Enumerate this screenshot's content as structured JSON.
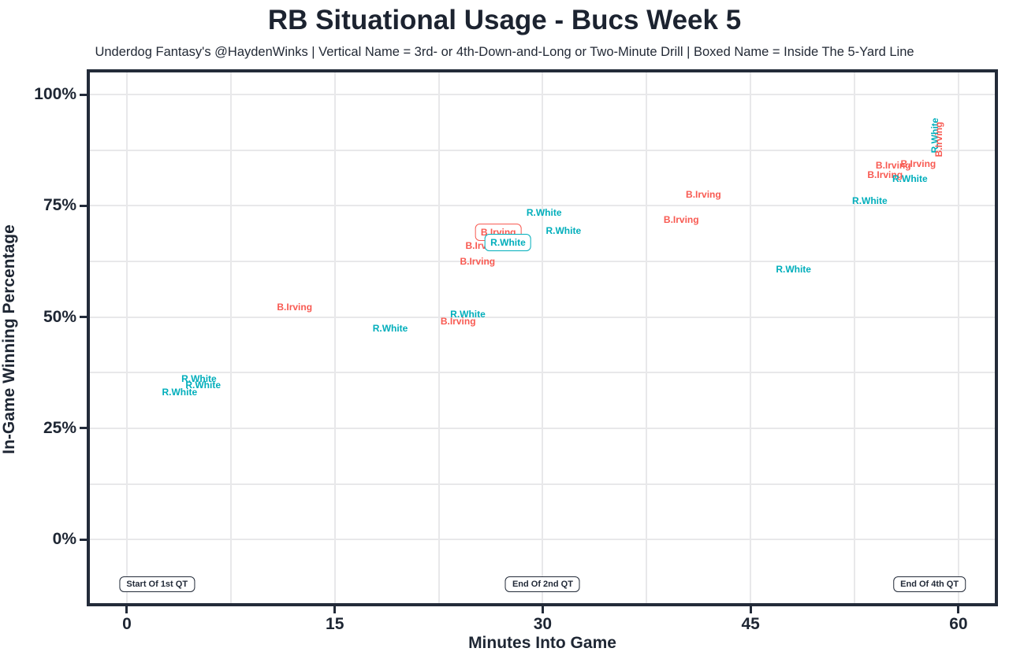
{
  "header": {
    "title": "RB Situational Usage - Bucs Week 5",
    "subtitle": "Underdog Fantasy's @HaydenWinks | Vertical Name = 3rd- or 4th-Down-and-Long or Two-Minute Drill | Boxed Name = Inside The 5-Yard Line"
  },
  "colors": {
    "white_teal": "#00AEBB",
    "irving_red": "#F85A52",
    "axis_text": "#1E2633",
    "panel_border": "#232B39",
    "grid": "#E8E8EA",
    "background": "#FFFFFF"
  },
  "chart_data": {
    "type": "scatter",
    "title": "RB Situational Usage - Bucs Week 5",
    "xlabel": "Minutes Into Game",
    "ylabel": "In-Game Winning Percentage",
    "xlim": [
      -2.9,
      62.85
    ],
    "ylim": [
      -15.0,
      105.7
    ],
    "grid": true,
    "x_gridlines": [
      0,
      7.5,
      15,
      22.5,
      30,
      37.5,
      45,
      52.5,
      60
    ],
    "y_gridlines": [
      0,
      12.5,
      25,
      37.5,
      50,
      62.5,
      75,
      87.5,
      100
    ],
    "x_ticks": [
      {
        "value": 0,
        "label": "0"
      },
      {
        "value": 15,
        "label": "15"
      },
      {
        "value": 30,
        "label": "30"
      },
      {
        "value": 45,
        "label": "45"
      },
      {
        "value": 60,
        "label": "60"
      }
    ],
    "y_ticks": [
      {
        "value": 0,
        "label": "0%"
      },
      {
        "value": 25,
        "label": "25%"
      },
      {
        "value": 50,
        "label": "50%"
      },
      {
        "value": 75,
        "label": "75%"
      },
      {
        "value": 100,
        "label": "100%"
      }
    ],
    "series": [
      {
        "name": "B.Irving",
        "color": "#F85A52",
        "points": [
          {
            "x": 12.1,
            "y": 52.2,
            "vertical": false,
            "boxed": false,
            "z": 2
          },
          {
            "x": 23.9,
            "y": 49.0,
            "vertical": false,
            "boxed": false,
            "z": 2
          },
          {
            "x": 25.7,
            "y": 66.0,
            "vertical": false,
            "boxed": false,
            "z": 2
          },
          {
            "x": 25.3,
            "y": 62.5,
            "vertical": false,
            "boxed": false,
            "z": 2
          },
          {
            "x": 26.8,
            "y": 69.0,
            "vertical": false,
            "boxed": true,
            "z": 4
          },
          {
            "x": 40.0,
            "y": 71.9,
            "vertical": false,
            "boxed": false,
            "z": 2
          },
          {
            "x": 41.6,
            "y": 77.5,
            "vertical": false,
            "boxed": false,
            "z": 2
          },
          {
            "x": 54.7,
            "y": 81.9,
            "vertical": false,
            "boxed": false,
            "z": 2
          },
          {
            "x": 55.3,
            "y": 84.1,
            "vertical": false,
            "boxed": false,
            "z": 2
          },
          {
            "x": 57.1,
            "y": 84.4,
            "vertical": false,
            "boxed": false,
            "z": 2
          },
          {
            "x": 58.6,
            "y": 89.9,
            "vertical": true,
            "boxed": false,
            "z": 6
          }
        ]
      },
      {
        "name": "R.White",
        "color": "#00AEBB",
        "points": [
          {
            "x": 3.8,
            "y": 33.1,
            "vertical": false,
            "boxed": false,
            "z": 3
          },
          {
            "x": 5.2,
            "y": 36.1,
            "vertical": false,
            "boxed": false,
            "z": 3
          },
          {
            "x": 5.5,
            "y": 34.7,
            "vertical": false,
            "boxed": false,
            "z": 3
          },
          {
            "x": 19.0,
            "y": 47.4,
            "vertical": false,
            "boxed": false,
            "z": 3
          },
          {
            "x": 24.6,
            "y": 50.6,
            "vertical": false,
            "boxed": false,
            "z": 3
          },
          {
            "x": 27.5,
            "y": 66.7,
            "vertical": false,
            "boxed": true,
            "z": 5
          },
          {
            "x": 30.1,
            "y": 73.5,
            "vertical": false,
            "boxed": false,
            "z": 3
          },
          {
            "x": 31.5,
            "y": 69.4,
            "vertical": false,
            "boxed": false,
            "z": 3
          },
          {
            "x": 48.1,
            "y": 60.7,
            "vertical": false,
            "boxed": false,
            "z": 3
          },
          {
            "x": 53.6,
            "y": 76.1,
            "vertical": false,
            "boxed": false,
            "z": 3
          },
          {
            "x": 56.5,
            "y": 81.1,
            "vertical": false,
            "boxed": false,
            "z": 3
          },
          {
            "x": 58.3,
            "y": 90.8,
            "vertical": true,
            "boxed": false,
            "z": 5
          }
        ]
      }
    ],
    "annotations": [
      {
        "label": "Start Of 1st QT",
        "x": 0,
        "y": -10
      },
      {
        "label": "End Of 2nd QT",
        "x": 30,
        "y": -10
      },
      {
        "label": "End Of 4th QT",
        "x": 60,
        "y": -10
      }
    ],
    "legend": "none"
  }
}
